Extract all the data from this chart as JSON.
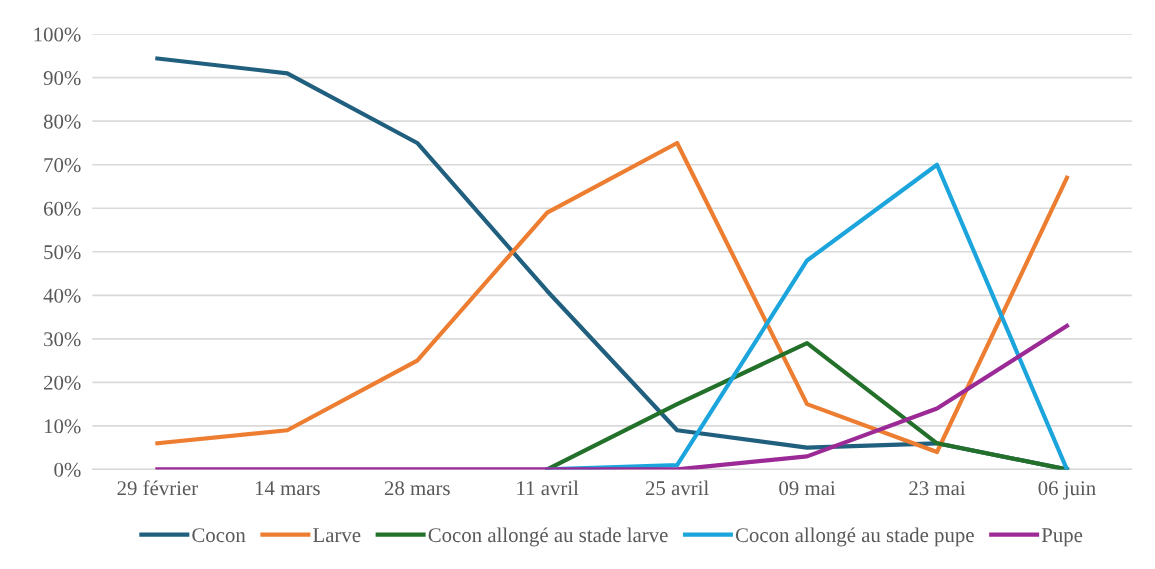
{
  "chart_data": {
    "type": "line",
    "categories": [
      "29 février",
      "14 mars",
      "28 mars",
      "11 avril",
      "25 avril",
      "09 mai",
      "23 mai",
      "06 juin"
    ],
    "series": [
      {
        "name": "Cocon",
        "color": "#215f7f",
        "values": [
          94.4,
          91,
          75,
          41,
          9,
          5,
          6,
          0
        ]
      },
      {
        "name": "Larve",
        "color": "#ed7d31",
        "values": [
          6,
          9,
          25,
          59,
          75,
          15,
          4,
          67
        ]
      },
      {
        "name": "Cocon allongé au stade larve",
        "color": "#23702a",
        "values": [
          null,
          null,
          null,
          0,
          15,
          29,
          6,
          0
        ]
      },
      {
        "name": "Cocon allongé au stade pupe",
        "color": "#1ba5dc",
        "values": [
          null,
          null,
          null,
          0,
          1,
          48,
          70,
          0
        ]
      },
      {
        "name": "Pupe",
        "color": "#9b2a96",
        "values": [
          0,
          0,
          0,
          0,
          0,
          3,
          14,
          33
        ]
      }
    ],
    "ylim": [
      0,
      100
    ],
    "yticks": [
      {
        "value": 0,
        "label": "0%"
      },
      {
        "value": 10,
        "label": "10%"
      },
      {
        "value": 20,
        "label": "20%"
      },
      {
        "value": 30,
        "label": "30%"
      },
      {
        "value": 40,
        "label": "40%"
      },
      {
        "value": 50,
        "label": "50%"
      },
      {
        "value": 60,
        "label": "60%"
      },
      {
        "value": 70,
        "label": "70%"
      },
      {
        "value": 80,
        "label": "80%"
      },
      {
        "value": 90,
        "label": "90%"
      },
      {
        "value": 100,
        "label": "100%"
      }
    ],
    "grid": "y",
    "legend": "bottom",
    "marker": "none",
    "line_style": "solid"
  }
}
